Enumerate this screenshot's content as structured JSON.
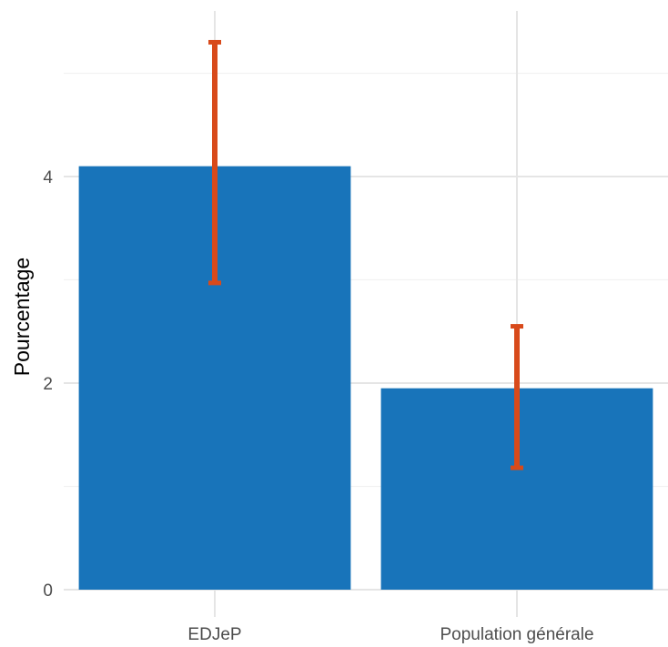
{
  "chart_data": {
    "type": "bar",
    "title": "",
    "xlabel": "",
    "ylabel": "Pourcentage",
    "categories": [
      "EDJeP",
      "Population générale"
    ],
    "values": [
      4.1,
      1.95
    ],
    "error_low": [
      2.97,
      1.18
    ],
    "error_high": [
      5.3,
      2.55
    ],
    "ylim": [
      0,
      5.55
    ],
    "yticks": [
      0,
      2,
      4
    ],
    "yticks_minor": [
      1,
      3,
      5
    ],
    "grid": true,
    "legend": "none",
    "colors": {
      "bar": "#1874BA",
      "error": "#D84A1B",
      "grid_major": "#E5E5E5",
      "grid_minor": "#F2F2F2"
    }
  }
}
